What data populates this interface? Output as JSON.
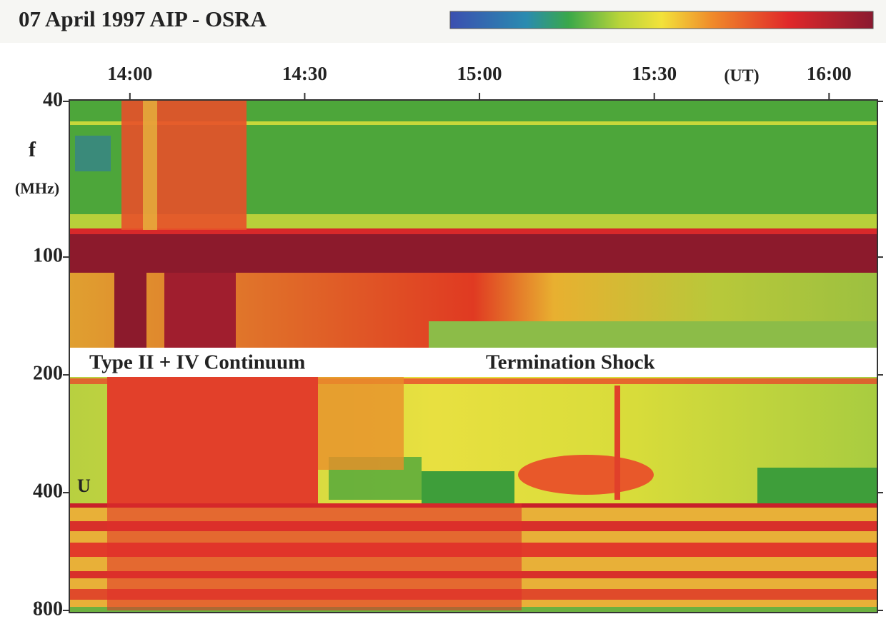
{
  "chart_data": {
    "type": "spectrogram",
    "title": "07 April 1997  AIP - OSRA",
    "x_label": "(UT)",
    "y_label": "f",
    "y_unit": "(MHz)",
    "xlim": [
      829.6,
      968.3
    ],
    "xticks": [
      {
        "value": 840,
        "label": "14:00"
      },
      {
        "value": 870,
        "label": "14:30"
      },
      {
        "value": 900,
        "label": "15:00"
      },
      {
        "value": 930,
        "label": "15:30"
      },
      {
        "value": 960,
        "label": "16:00"
      }
    ],
    "ylim": [
      40,
      800
    ],
    "yticks": [
      40,
      100,
      200,
      400,
      800
    ],
    "log_y": true,
    "annotations": [
      "Type II + IV Continuum",
      "Termination Shock",
      "U"
    ]
  }
}
